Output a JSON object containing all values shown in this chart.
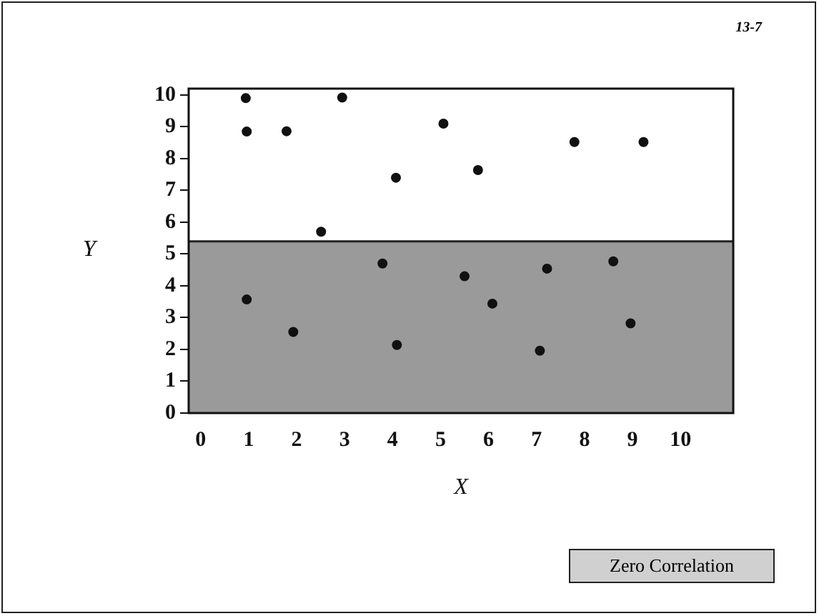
{
  "chart_data": {
    "type": "scatter",
    "xlabel": "X",
    "ylabel": "Y",
    "annotations": [
      "13-7",
      "Zero Correlation"
    ],
    "x": [
      0.94,
      0.96,
      1.79,
      2.95,
      2.51,
      4.07,
      5.06,
      0.96,
      1.93,
      3.79,
      4.09,
      5.5,
      5.78,
      7.79,
      9.23,
      6.08,
      7.22,
      7.07,
      8.6,
      8.96
    ],
    "series": [
      {
        "color": "#111111",
        "values": [
          9.9,
          8.85,
          8.86,
          9.92,
          5.7,
          7.4,
          9.1,
          3.57,
          2.55,
          4.7,
          2.14,
          4.3,
          7.64,
          8.52,
          8.52,
          3.44,
          4.54,
          1.96,
          4.77,
          2.82
        ]
      }
    ],
    "xlim": [
      -0.25,
      11.1
    ],
    "ylim": [
      0,
      10.2
    ],
    "xticks": [
      0,
      1,
      2,
      3,
      4,
      5,
      6,
      7,
      8,
      9,
      10
    ],
    "yticks": [
      0,
      1,
      2,
      3,
      4,
      5,
      6,
      7,
      8,
      9,
      10
    ],
    "ref_lines": [
      {
        "axis": "y",
        "value": 5.4,
        "color": "#222222"
      }
    ],
    "bands": [
      {
        "axis": "y",
        "from": 0,
        "to": 5.4,
        "color": "#9a9a9a"
      }
    ],
    "grid": false,
    "legend": false,
    "marker": "circle"
  }
}
